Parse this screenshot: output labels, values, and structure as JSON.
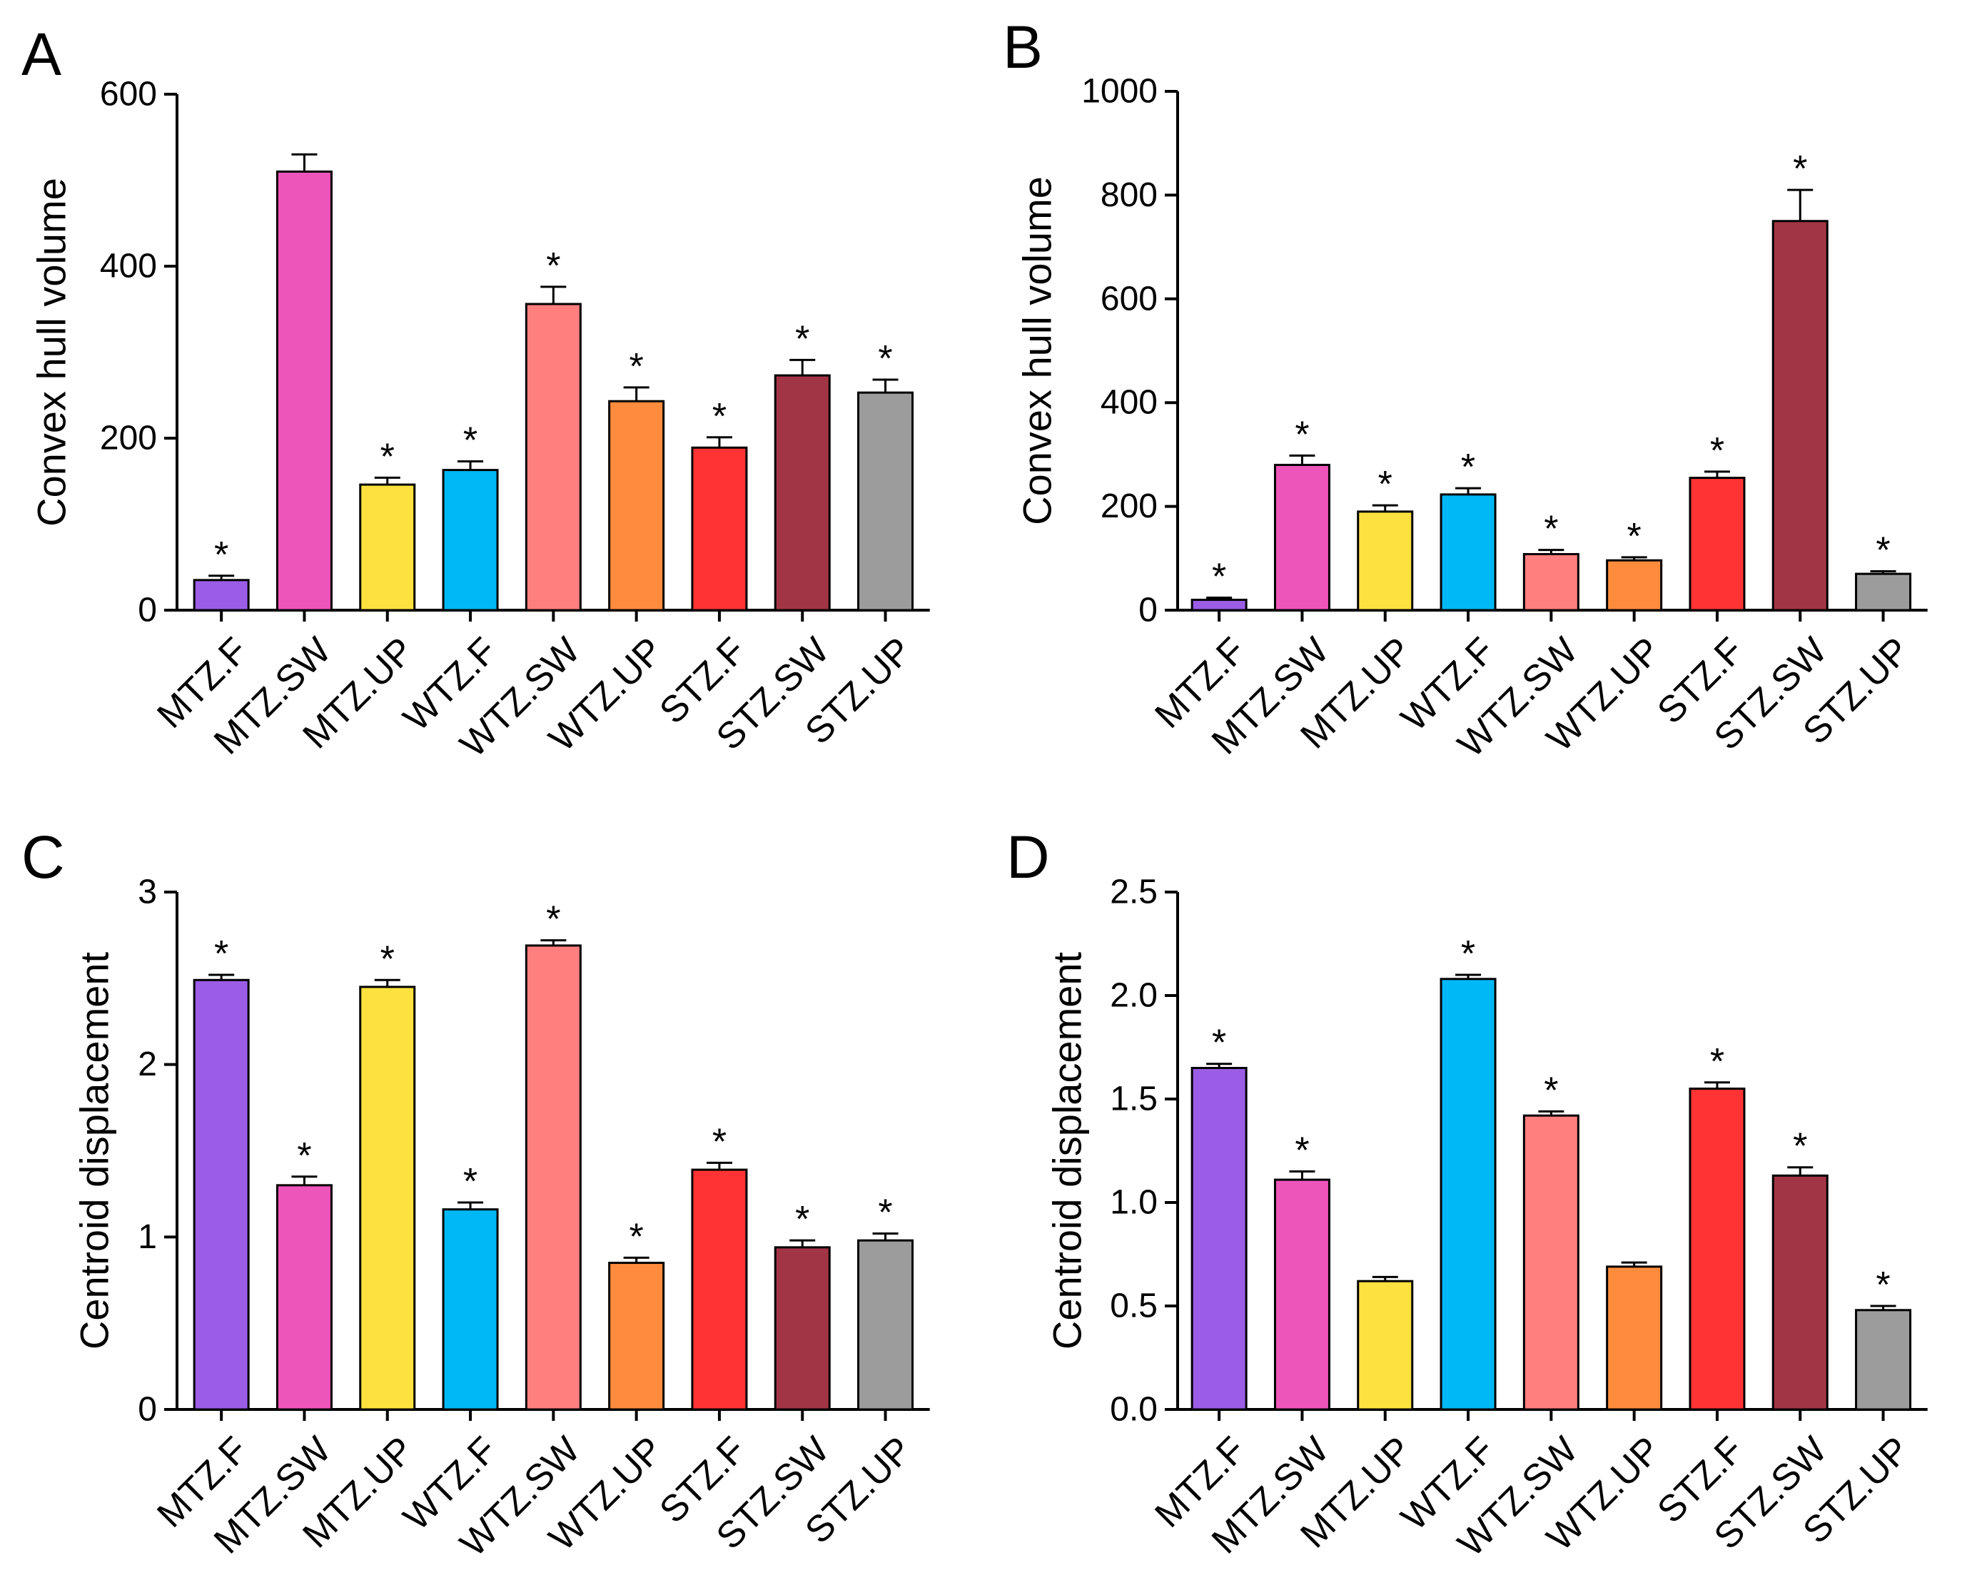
{
  "chart_data": [
    {
      "panel": "A",
      "type": "bar",
      "categories": [
        "MTZ.F",
        "MTZ.SW",
        "MTZ.UP",
        "WTZ.F",
        "WTZ.SW",
        "WTZ.UP",
        "STZ.F",
        "STZ.SW",
        "STZ.UP"
      ],
      "values": [
        35,
        510,
        146,
        163,
        356,
        243,
        189,
        273,
        253
      ],
      "errors": [
        5,
        20,
        8,
        10,
        20,
        16,
        12,
        18,
        15
      ],
      "significant": [
        true,
        false,
        true,
        true,
        true,
        true,
        true,
        true,
        true
      ],
      "ylabel": "Convex hull volume",
      "ylim": [
        0,
        600
      ],
      "yticks": [
        0,
        200,
        400,
        600
      ],
      "ytick_labels": [
        "0",
        "200",
        "400",
        "600"
      ]
    },
    {
      "panel": "B",
      "type": "bar",
      "categories": [
        "MTZ.F",
        "MTZ.SW",
        "MTZ.UP",
        "WTZ.F",
        "WTZ.SW",
        "WTZ.UP",
        "STZ.F",
        "STZ.SW",
        "STZ.UP"
      ],
      "values": [
        20,
        280,
        190,
        223,
        108,
        96,
        255,
        750,
        70
      ],
      "errors": [
        4,
        18,
        12,
        12,
        8,
        6,
        12,
        60,
        5
      ],
      "significant": [
        true,
        true,
        true,
        true,
        true,
        true,
        true,
        true,
        true
      ],
      "ylabel": "Convex hull volume",
      "ylim": [
        0,
        1000
      ],
      "yticks": [
        0,
        200,
        400,
        600,
        800,
        1000
      ],
      "ytick_labels": [
        "0",
        "200",
        "400",
        "600",
        "800",
        "1000"
      ]
    },
    {
      "panel": "C",
      "type": "bar",
      "categories": [
        "MTZ.F",
        "MTZ.SW",
        "MTZ.UP",
        "WTZ.F",
        "WTZ.SW",
        "WTZ.UP",
        "STZ.F",
        "STZ.SW",
        "STZ.UP"
      ],
      "values": [
        2.49,
        1.3,
        2.45,
        1.16,
        2.69,
        0.85,
        1.39,
        0.94,
        0.98
      ],
      "errors": [
        0.03,
        0.05,
        0.04,
        0.04,
        0.03,
        0.03,
        0.04,
        0.04,
        0.04
      ],
      "significant": [
        true,
        true,
        true,
        true,
        true,
        true,
        true,
        true,
        true
      ],
      "ylabel": "Centroid displacement",
      "ylim": [
        0,
        3
      ],
      "yticks": [
        0,
        1,
        2,
        3
      ],
      "ytick_labels": [
        "0",
        "1",
        "2",
        "3"
      ]
    },
    {
      "panel": "D",
      "type": "bar",
      "categories": [
        "MTZ.F",
        "MTZ.SW",
        "MTZ.UP",
        "WTZ.F",
        "WTZ.SW",
        "WTZ.UP",
        "STZ.F",
        "STZ.SW",
        "STZ.UP"
      ],
      "values": [
        1.65,
        1.11,
        0.62,
        2.08,
        1.42,
        0.69,
        1.55,
        1.13,
        0.48
      ],
      "errors": [
        0.02,
        0.04,
        0.02,
        0.02,
        0.02,
        0.02,
        0.03,
        0.04,
        0.02
      ],
      "significant": [
        true,
        true,
        false,
        true,
        true,
        false,
        true,
        true,
        true
      ],
      "ylabel": "Centroid displacement",
      "ylim": [
        0,
        2.5
      ],
      "yticks": [
        0,
        0.5,
        1.0,
        1.5,
        2.0,
        2.5
      ],
      "ytick_labels": [
        "0.0",
        "0.5",
        "1.0",
        "1.5",
        "2.0",
        "2.5"
      ]
    }
  ],
  "bar_colors": [
    "#9b5de5",
    "#ee55bb",
    "#fde23f",
    "#00b8f5",
    "#ff7f7f",
    "#ff8c3d",
    "#ff3333",
    "#a23545",
    "#9c9c9c"
  ],
  "significance_marker": "*"
}
